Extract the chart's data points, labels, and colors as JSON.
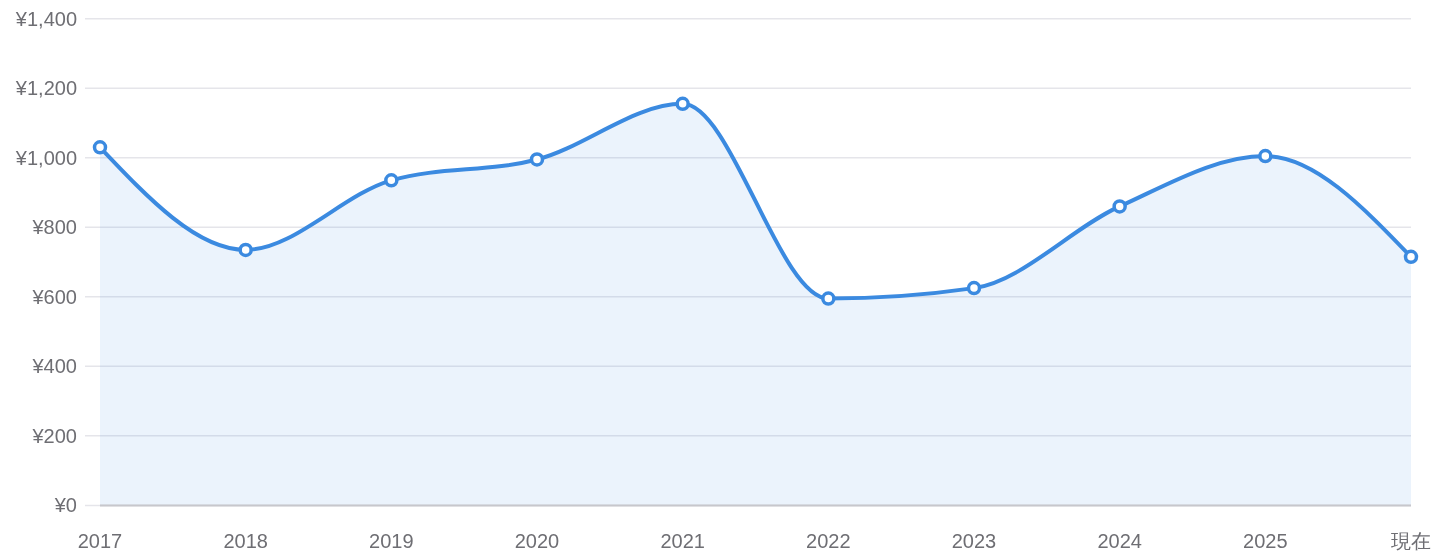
{
  "chart_data": {
    "type": "area",
    "categories": [
      "2017",
      "2018",
      "2019",
      "2020",
      "2021",
      "2022",
      "2023",
      "2024",
      "2025",
      "現在"
    ],
    "values": [
      1030,
      735,
      935,
      995,
      1155,
      595,
      625,
      860,
      1005,
      715
    ],
    "color": "#3b8ae0",
    "ylim": [
      0,
      1400
    ],
    "yticks": [
      {
        "value": 0,
        "label": "¥0"
      },
      {
        "value": 200,
        "label": "¥200"
      },
      {
        "value": 400,
        "label": "¥400"
      },
      {
        "value": 600,
        "label": "¥600"
      },
      {
        "value": 800,
        "label": "¥800"
      },
      {
        "value": 1000,
        "label": "¥1,000"
      },
      {
        "value": 1200,
        "label": "¥1,200"
      },
      {
        "value": 1400,
        "label": "¥1,400"
      }
    ],
    "grid": "y",
    "marker": "circle"
  }
}
